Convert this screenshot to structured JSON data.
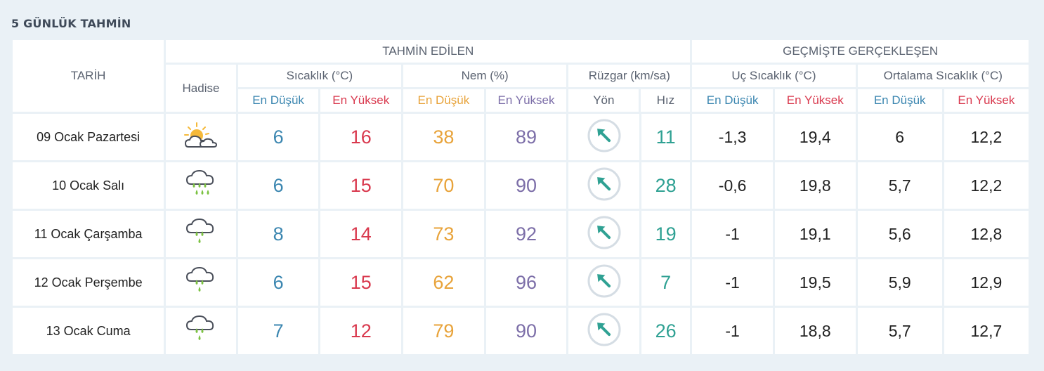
{
  "title": "5 GÜNLÜK TAHMİN",
  "headers": {
    "tarih": "TARİH",
    "tahmin": "TAHMİN EDİLEN",
    "gecmis": "GEÇMİŞTE GERÇEKLEŞEN",
    "hadise": "Hadise",
    "sicaklik": "Sıcaklık (°C)",
    "nem": "Nem (%)",
    "ruzgar": "Rüzgar (km/sa)",
    "uc_sicaklik": "Uç Sıcaklık (°C)",
    "ortalama_sicaklik": "Ortalama Sıcaklık (°C)",
    "en_dusuk": "En Düşük",
    "en_yuksek": "En Yüksek",
    "yon": "Yön",
    "hiz": "Hız"
  },
  "colors": {
    "blue": "#3b86b0",
    "red": "#d9394e",
    "orange": "#e8a33a",
    "purple": "#7c6ea8",
    "teal": "#2fa193"
  },
  "rows": [
    {
      "date": "09 Ocak Pazartesi",
      "icon": "partly-cloudy-sun-icon",
      "temp_min": "6",
      "temp_max": "16",
      "hum_min": "38",
      "hum_max": "89",
      "wind_dir_icon": "wind-direction-northwest-icon",
      "wind_speed": "11",
      "ext_min": "-1,3",
      "ext_max": "19,4",
      "avg_min": "6",
      "avg_max": "12,2"
    },
    {
      "date": "10 Ocak Salı",
      "icon": "rain-cloud-icon",
      "temp_min": "6",
      "temp_max": "15",
      "hum_min": "70",
      "hum_max": "90",
      "wind_dir_icon": "wind-direction-northwest-icon",
      "wind_speed": "28",
      "ext_min": "-0,6",
      "ext_max": "19,8",
      "avg_min": "5,7",
      "avg_max": "12,2"
    },
    {
      "date": "11 Ocak Çarşamba",
      "icon": "light-rain-cloud-icon",
      "temp_min": "8",
      "temp_max": "14",
      "hum_min": "73",
      "hum_max": "92",
      "wind_dir_icon": "wind-direction-northwest-icon",
      "wind_speed": "19",
      "ext_min": "-1",
      "ext_max": "19,1",
      "avg_min": "5,6",
      "avg_max": "12,8"
    },
    {
      "date": "12 Ocak Perşembe",
      "icon": "light-rain-cloud-icon",
      "temp_min": "6",
      "temp_max": "15",
      "hum_min": "62",
      "hum_max": "96",
      "wind_dir_icon": "wind-direction-northwest-icon",
      "wind_speed": "7",
      "ext_min": "-1",
      "ext_max": "19,5",
      "avg_min": "5,9",
      "avg_max": "12,9"
    },
    {
      "date": "13 Ocak Cuma",
      "icon": "light-rain-cloud-icon",
      "temp_min": "7",
      "temp_max": "12",
      "hum_min": "79",
      "hum_max": "90",
      "wind_dir_icon": "wind-direction-northwest-icon",
      "wind_speed": "26",
      "ext_min": "-1",
      "ext_max": "18,8",
      "avg_min": "5,7",
      "avg_max": "12,7"
    }
  ]
}
